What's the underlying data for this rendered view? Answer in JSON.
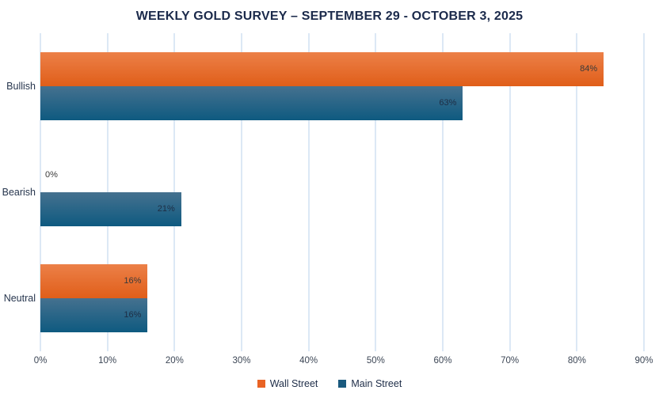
{
  "title": "WEEKLY GOLD SURVEY – SEPTEMBER 29 - OCTOBER 3, 2025",
  "chart_data": {
    "type": "bar",
    "orientation": "horizontal",
    "title": "WEEKLY GOLD SURVEY – SEPTEMBER 29 - OCTOBER 3, 2025",
    "categories": [
      "Bullish",
      "Bearish",
      "Neutral"
    ],
    "series": [
      {
        "name": "Wall Street",
        "values": [
          84,
          0,
          16
        ],
        "color_top": "#ec8048",
        "color_bottom": "#e05e19",
        "legend_color": "#e96324",
        "label_color": "#3a3a3a"
      },
      {
        "name": "Main Street",
        "values": [
          63,
          21,
          16
        ],
        "color_top": "#45718f",
        "color_bottom": "#0e5a80",
        "legend_color": "#1a5a7e",
        "label_color": "#1d2d44"
      }
    ],
    "data_labels": {
      "wall_street": [
        "84%",
        "0%",
        "16%"
      ],
      "main_street": [
        "63%",
        "21%",
        "16%"
      ]
    },
    "x_ticks": [
      "0%",
      "10%",
      "20%",
      "30%",
      "40%",
      "50%",
      "60%",
      "70%",
      "80%",
      "90%"
    ],
    "xlim": [
      0,
      90
    ],
    "grid": "vertical",
    "gridline_color": "#dce8f5",
    "legend_position": "bottom",
    "title_color": "#1b2a4b"
  }
}
